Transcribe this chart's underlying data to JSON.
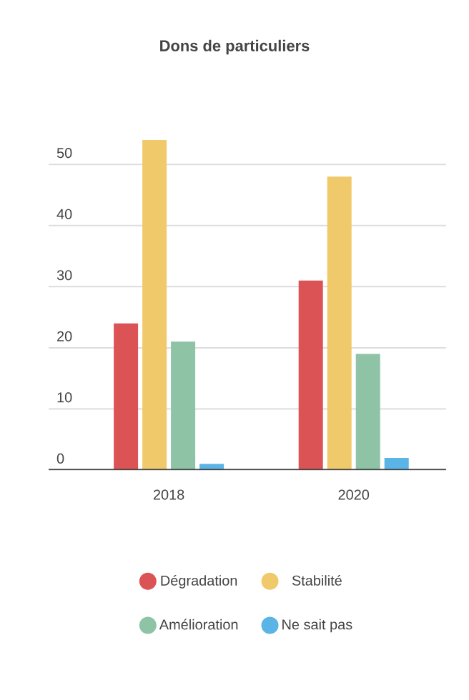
{
  "chart_data": {
    "type": "bar",
    "title": "Dons de particuliers",
    "categories": [
      "2018",
      "2020"
    ],
    "series": [
      {
        "name": "Dégradation",
        "color": "#dc5356",
        "values": [
          24,
          31
        ]
      },
      {
        "name": "Stabilité",
        "color": "#f0c96a",
        "values": [
          54,
          48
        ]
      },
      {
        "name": "Amélioration",
        "color": "#8fc3a6",
        "values": [
          21,
          19
        ]
      },
      {
        "name": "Ne sait pas",
        "color": "#5ab4e5",
        "values": [
          1,
          2
        ]
      }
    ],
    "ylim": [
      0,
      54
    ],
    "yticks": [
      0,
      10,
      20,
      30,
      40,
      50
    ],
    "grid": "y",
    "legend": "bottom"
  }
}
